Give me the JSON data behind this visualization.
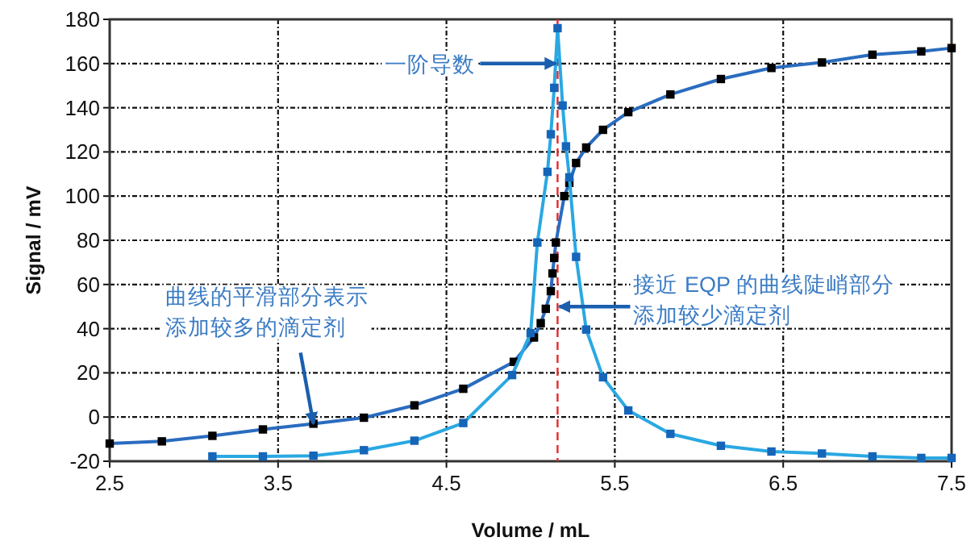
{
  "chart_data": {
    "type": "line",
    "xlabel": "Volume / mL",
    "ylabel": "Signal / mV",
    "xlim": [
      2.5,
      7.5
    ],
    "xticks": [
      2.5,
      3.5,
      4.5,
      5.5,
      6.5,
      7.5
    ],
    "ylim": [
      -20,
      180
    ],
    "yticks": [
      -20,
      0,
      20,
      40,
      60,
      80,
      100,
      120,
      140,
      160,
      180
    ],
    "grid": true,
    "marker": "square",
    "line_style": "solid",
    "series": [
      {
        "color": "#2a6cbf",
        "x": [
          2.5,
          2.81,
          3.11,
          3.41,
          3.71,
          4.01,
          4.31,
          4.6,
          4.9,
          5.02,
          5.06,
          5.09,
          5.12,
          5.13,
          5.14,
          5.15,
          5.2,
          5.23,
          5.27,
          5.33,
          5.43,
          5.58,
          5.83,
          6.13,
          6.43,
          6.73,
          7.03,
          7.32,
          7.5
        ],
        "values": [
          -12,
          -11,
          -8.5,
          -5.6,
          -3,
          -0.3,
          5.3,
          12.8,
          25,
          36,
          42.5,
          49,
          57,
          65,
          72,
          79,
          100,
          106,
          115,
          122,
          130,
          138,
          146,
          153,
          158,
          160.5,
          164,
          165.5,
          167
        ]
      },
      {
        "color": "#2aa8e2",
        "x": [
          3.11,
          3.41,
          3.71,
          4.01,
          4.31,
          4.6,
          4.89,
          5.0,
          5.04,
          5.1,
          5.12,
          5.14,
          5.16,
          5.19,
          5.21,
          5.23,
          5.27,
          5.33,
          5.43,
          5.58,
          5.83,
          6.13,
          6.43,
          6.73,
          7.03,
          7.32,
          7.5
        ],
        "values": [
          -17.8,
          -17.8,
          -17.5,
          -15,
          -10.7,
          -2.7,
          19,
          38,
          79,
          111,
          128,
          149,
          176,
          141,
          122.5,
          108.5,
          72.5,
          39.6,
          18,
          3,
          -7.6,
          -13,
          -15.6,
          -16.5,
          -17.8,
          -18.5,
          -18.5
        ]
      }
    ],
    "ref_lines": [
      {
        "axis": "x",
        "value": 5.16,
        "color": "#e8262b",
        "line_style": "dashed"
      }
    ],
    "annotations": [
      {
        "text": "一阶导数",
        "x": 5.15,
        "y": 160
      },
      {
        "text": "曲线的平滑部分表示添加较多的滴定剂",
        "x": 3.71,
        "y": -3
      },
      {
        "text": "接近 EQP 的曲线陡峭部分添加较少滴定剂",
        "x": 5.17,
        "y": 50
      }
    ]
  }
}
